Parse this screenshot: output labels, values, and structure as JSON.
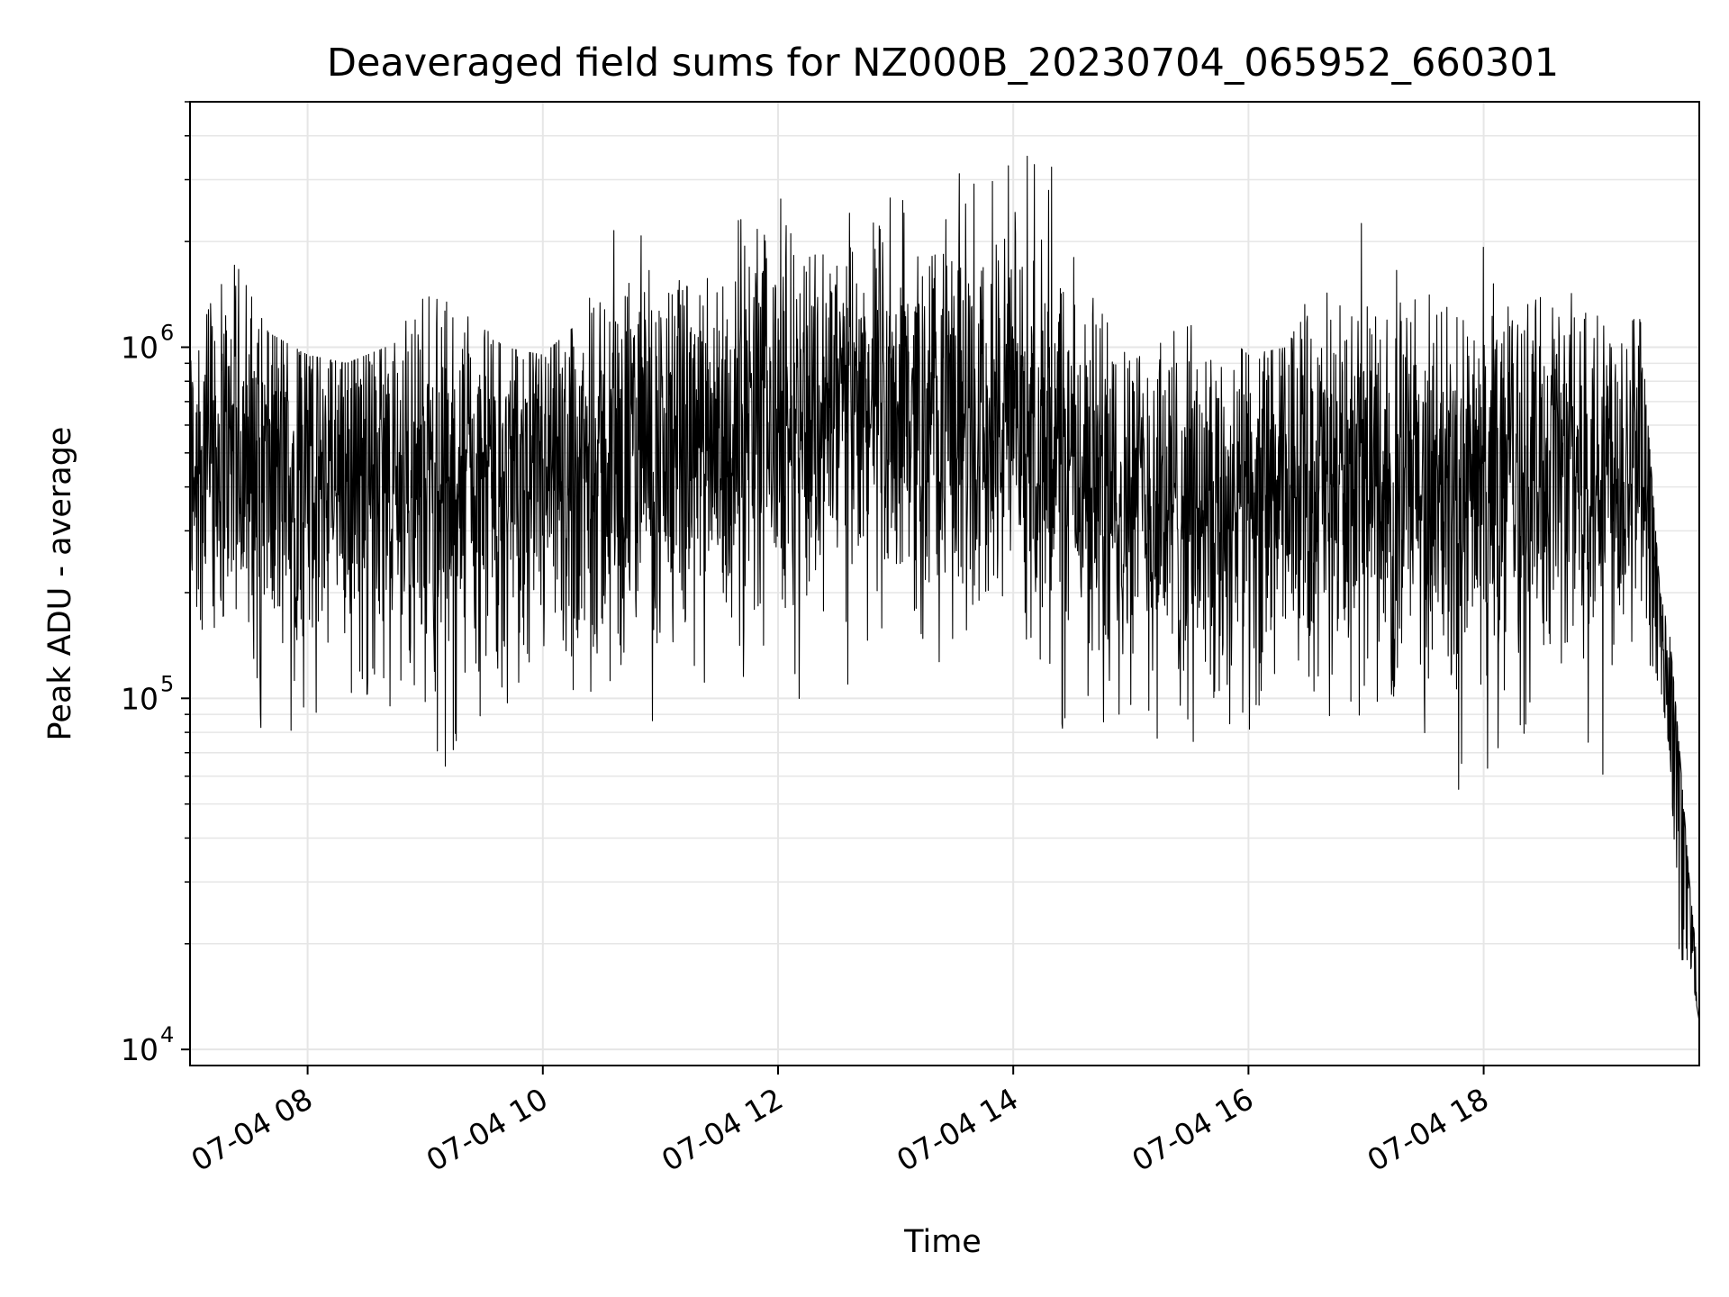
{
  "chart_data": {
    "type": "line",
    "title": "Deaveraged field sums for NZ000B_20230704_065952_660301",
    "xlabel": "Time",
    "ylabel": "Peak ADU - average",
    "yscale": "log",
    "ylim": [
      9000,
      5000000
    ],
    "xlim": [
      "2023-07-04 07:00",
      "2023-07-04 19:50"
    ],
    "grid": true,
    "line_color": "#000000",
    "grid_color": "#e6e6e6",
    "x_ticks": [
      {
        "label": "07-04 08",
        "x": "2023-07-04 08:00"
      },
      {
        "label": "07-04 10",
        "x": "2023-07-04 10:00"
      },
      {
        "label": "07-04 12",
        "x": "2023-07-04 12:00"
      },
      {
        "label": "07-04 14",
        "x": "2023-07-04 14:00"
      },
      {
        "label": "07-04 16",
        "x": "2023-07-04 16:00"
      },
      {
        "label": "07-04 18",
        "x": "2023-07-04 18:00"
      }
    ],
    "y_ticks": [
      {
        "label": "10",
        "exp": "4",
        "y": 10000
      },
      {
        "label": "10",
        "exp": "5",
        "y": 100000
      },
      {
        "label": "10",
        "exp": "6",
        "y": 1000000
      }
    ],
    "series": [
      {
        "x": [
          "2023-07-04 07:00",
          "2023-07-04 07:20",
          "2023-07-04 07:40",
          "2023-07-04 08:00",
          "2023-07-04 08:20",
          "2023-07-04 08:40",
          "2023-07-04 09:00",
          "2023-07-04 09:20",
          "2023-07-04 09:40",
          "2023-07-04 10:00",
          "2023-07-04 10:20",
          "2023-07-04 10:40",
          "2023-07-04 11:00",
          "2023-07-04 11:20",
          "2023-07-04 11:40",
          "2023-07-04 12:00",
          "2023-07-04 12:20",
          "2023-07-04 12:40",
          "2023-07-04 13:00",
          "2023-07-04 13:20",
          "2023-07-04 13:40",
          "2023-07-04 14:00",
          "2023-07-04 14:20",
          "2023-07-04 14:40",
          "2023-07-04 15:00",
          "2023-07-04 15:20",
          "2023-07-04 15:40",
          "2023-07-04 16:00",
          "2023-07-04 16:20",
          "2023-07-04 16:40",
          "2023-07-04 17:00",
          "2023-07-04 17:20",
          "2023-07-04 17:40",
          "2023-07-04 18:00",
          "2023-07-04 18:20",
          "2023-07-04 18:40",
          "2023-07-04 19:00",
          "2023-07-04 19:20",
          "2023-07-04 19:30",
          "2023-07-04 19:35",
          "2023-07-04 19:40",
          "2023-07-04 19:45",
          "2023-07-04 19:50"
        ],
        "y_median": [
          500000,
          480000,
          450000,
          420000,
          430000,
          400000,
          410000,
          380000,
          350000,
          380000,
          420000,
          460000,
          480000,
          500000,
          560000,
          620000,
          650000,
          640000,
          660000,
          640000,
          620000,
          600000,
          520000,
          420000,
          380000,
          350000,
          330000,
          350000,
          380000,
          410000,
          430000,
          400000,
          380000,
          380000,
          420000,
          460000,
          470000,
          490000,
          200000,
          110000,
          50000,
          30000,
          12000
        ],
        "y_min": [
          130000,
          180000,
          60000,
          90000,
          90000,
          80000,
          65000,
          60000,
          60000,
          80000,
          90000,
          100000,
          65000,
          100000,
          110000,
          150000,
          60000,
          130000,
          120000,
          110000,
          140000,
          190000,
          60000,
          80000,
          90000,
          50000,
          90000,
          80000,
          100000,
          65000,
          90000,
          90000,
          50000,
          50000,
          65000,
          60000,
          55000,
          130000,
          110000,
          70000,
          18000,
          18000,
          12000
        ],
        "y_max": [
          900000,
          1900000,
          1100000,
          950000,
          900000,
          1000000,
          1400000,
          1300000,
          1000000,
          950000,
          1200000,
          2900000,
          1700000,
          1400000,
          2500000,
          2600000,
          3300000,
          2300000,
          3000000,
          3600000,
          3200000,
          3600000,
          3500000,
          1400000,
          900000,
          1100000,
          1200000,
          950000,
          1000000,
          1900000,
          2800000,
          1600000,
          1300000,
          2000000,
          1300000,
          1500000,
          1200000,
          1200000,
          200000,
          150000,
          70000,
          30000,
          15000
        ]
      }
    ]
  }
}
